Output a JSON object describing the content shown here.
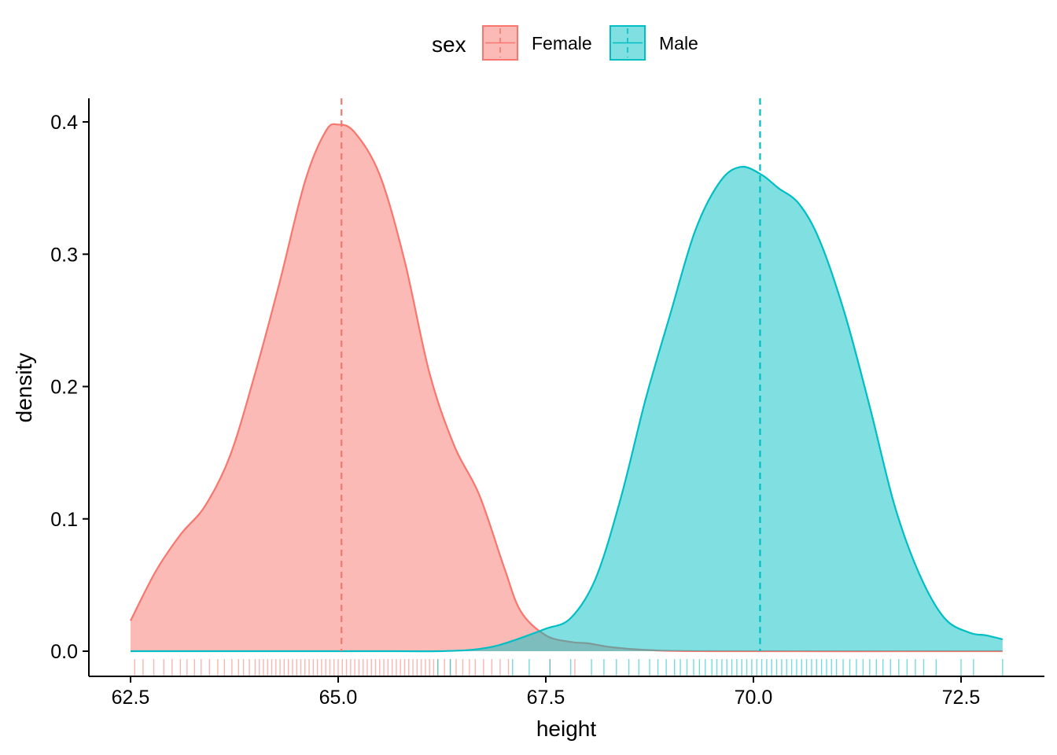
{
  "chart_data": {
    "type": "area",
    "xlabel": "height",
    "ylabel": "density",
    "xlim": [
      62.3,
      73.35
    ],
    "ylim": [
      -0.019,
      0.415
    ],
    "x_ticks": [
      62.5,
      65.0,
      67.5,
      70.0,
      72.5
    ],
    "x_tick_labels": [
      "62.5",
      "65.0",
      "67.5",
      "70.0",
      "72.5"
    ],
    "y_ticks": [
      0.0,
      0.1,
      0.2,
      0.3,
      0.4
    ],
    "y_tick_labels": [
      "0.0",
      "0.1",
      "0.2",
      "0.3",
      "0.4"
    ],
    "grid": false,
    "legend": {
      "title": "sex",
      "position": "top",
      "entries": [
        "Female",
        "Male"
      ]
    },
    "series": [
      {
        "name": "Female",
        "color": "#F8766D",
        "fill": "#FBB8B4",
        "mean": 65.04,
        "density": [
          [
            62.5,
            0.023
          ],
          [
            62.8,
            0.06
          ],
          [
            63.1,
            0.088
          ],
          [
            63.4,
            0.11
          ],
          [
            63.7,
            0.148
          ],
          [
            64.0,
            0.21
          ],
          [
            64.3,
            0.28
          ],
          [
            64.6,
            0.355
          ],
          [
            64.85,
            0.393
          ],
          [
            65.0,
            0.398
          ],
          [
            65.2,
            0.392
          ],
          [
            65.5,
            0.36
          ],
          [
            65.8,
            0.295
          ],
          [
            66.1,
            0.21
          ],
          [
            66.4,
            0.155
          ],
          [
            66.7,
            0.118
          ],
          [
            67.0,
            0.063
          ],
          [
            67.2,
            0.03
          ],
          [
            67.5,
            0.012
          ],
          [
            67.8,
            0.007
          ],
          [
            68.0,
            0.006
          ],
          [
            68.3,
            0.003
          ],
          [
            68.7,
            0.001
          ],
          [
            69.5,
            0.0
          ],
          [
            73.0,
            0.0
          ]
        ],
        "rug": [
          62.55,
          62.65,
          62.78,
          62.9,
          63.0,
          63.1,
          63.18,
          63.27,
          63.35,
          63.45,
          63.55,
          63.63,
          63.72,
          63.8,
          63.86,
          63.93,
          64.0,
          64.05,
          64.1,
          64.15,
          64.2,
          64.25,
          64.3,
          64.35,
          64.4,
          64.45,
          64.5,
          64.55,
          64.6,
          64.65,
          64.7,
          64.75,
          64.8,
          64.85,
          64.9,
          64.95,
          65.0,
          65.05,
          65.1,
          65.15,
          65.2,
          65.25,
          65.3,
          65.35,
          65.4,
          65.45,
          65.5,
          65.55,
          65.6,
          65.65,
          65.7,
          65.75,
          65.8,
          65.85,
          65.9,
          65.95,
          66.0,
          66.05,
          66.1,
          66.15,
          66.2,
          66.28,
          66.35,
          66.42,
          66.5,
          66.58,
          66.65,
          66.75,
          66.85,
          66.95,
          67.05,
          67.55,
          67.85
        ]
      },
      {
        "name": "Male",
        "color": "#00BFC4",
        "fill": "#7FDFE1",
        "mean": 70.08,
        "density": [
          [
            62.5,
            0.0
          ],
          [
            65.5,
            0.0
          ],
          [
            66.2,
            0.0
          ],
          [
            66.6,
            0.001
          ],
          [
            66.9,
            0.004
          ],
          [
            67.2,
            0.01
          ],
          [
            67.5,
            0.017
          ],
          [
            67.8,
            0.025
          ],
          [
            68.1,
            0.055
          ],
          [
            68.4,
            0.115
          ],
          [
            68.7,
            0.19
          ],
          [
            69.0,
            0.255
          ],
          [
            69.3,
            0.318
          ],
          [
            69.6,
            0.355
          ],
          [
            69.85,
            0.366
          ],
          [
            70.1,
            0.36
          ],
          [
            70.3,
            0.35
          ],
          [
            70.55,
            0.338
          ],
          [
            70.8,
            0.31
          ],
          [
            71.1,
            0.255
          ],
          [
            71.4,
            0.185
          ],
          [
            71.7,
            0.11
          ],
          [
            72.0,
            0.058
          ],
          [
            72.3,
            0.025
          ],
          [
            72.6,
            0.014
          ],
          [
            72.8,
            0.012
          ],
          [
            73.0,
            0.009
          ]
        ],
        "rug": [
          66.2,
          66.35,
          67.1,
          67.3,
          67.55,
          67.8,
          68.05,
          68.2,
          68.35,
          68.5,
          68.62,
          68.75,
          68.85,
          68.95,
          69.05,
          69.12,
          69.2,
          69.28,
          69.35,
          69.42,
          69.5,
          69.56,
          69.62,
          69.68,
          69.74,
          69.8,
          69.86,
          69.92,
          69.98,
          70.04,
          70.1,
          70.16,
          70.22,
          70.28,
          70.34,
          70.4,
          70.46,
          70.52,
          70.58,
          70.64,
          70.7,
          70.76,
          70.82,
          70.88,
          70.94,
          71.0,
          71.08,
          71.16,
          71.24,
          71.32,
          71.4,
          71.48,
          71.56,
          71.65,
          71.75,
          71.85,
          71.95,
          72.05,
          72.2,
          72.5,
          72.65,
          73.0
        ]
      }
    ]
  }
}
